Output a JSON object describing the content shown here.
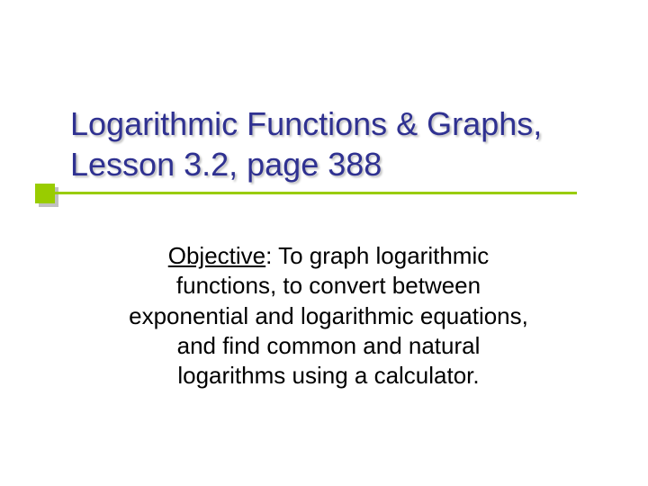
{
  "slide": {
    "title": "Logarithmic Functions & Graphs, Lesson 3.2, page 388",
    "objective_label": "Objective",
    "objective_text": ":  To graph logarithmic functions, to convert between exponential and logarithmic equations, and find common and natural logarithms using a calculator."
  },
  "style": {
    "title_color": "#2f3191",
    "accent_color": "#99cc00",
    "body_color": "#000000",
    "background_color": "#ffffff",
    "title_fontsize": 36,
    "body_fontsize": 26,
    "underline_width": 580,
    "underline_height": 3,
    "accent_square_size": 22
  }
}
